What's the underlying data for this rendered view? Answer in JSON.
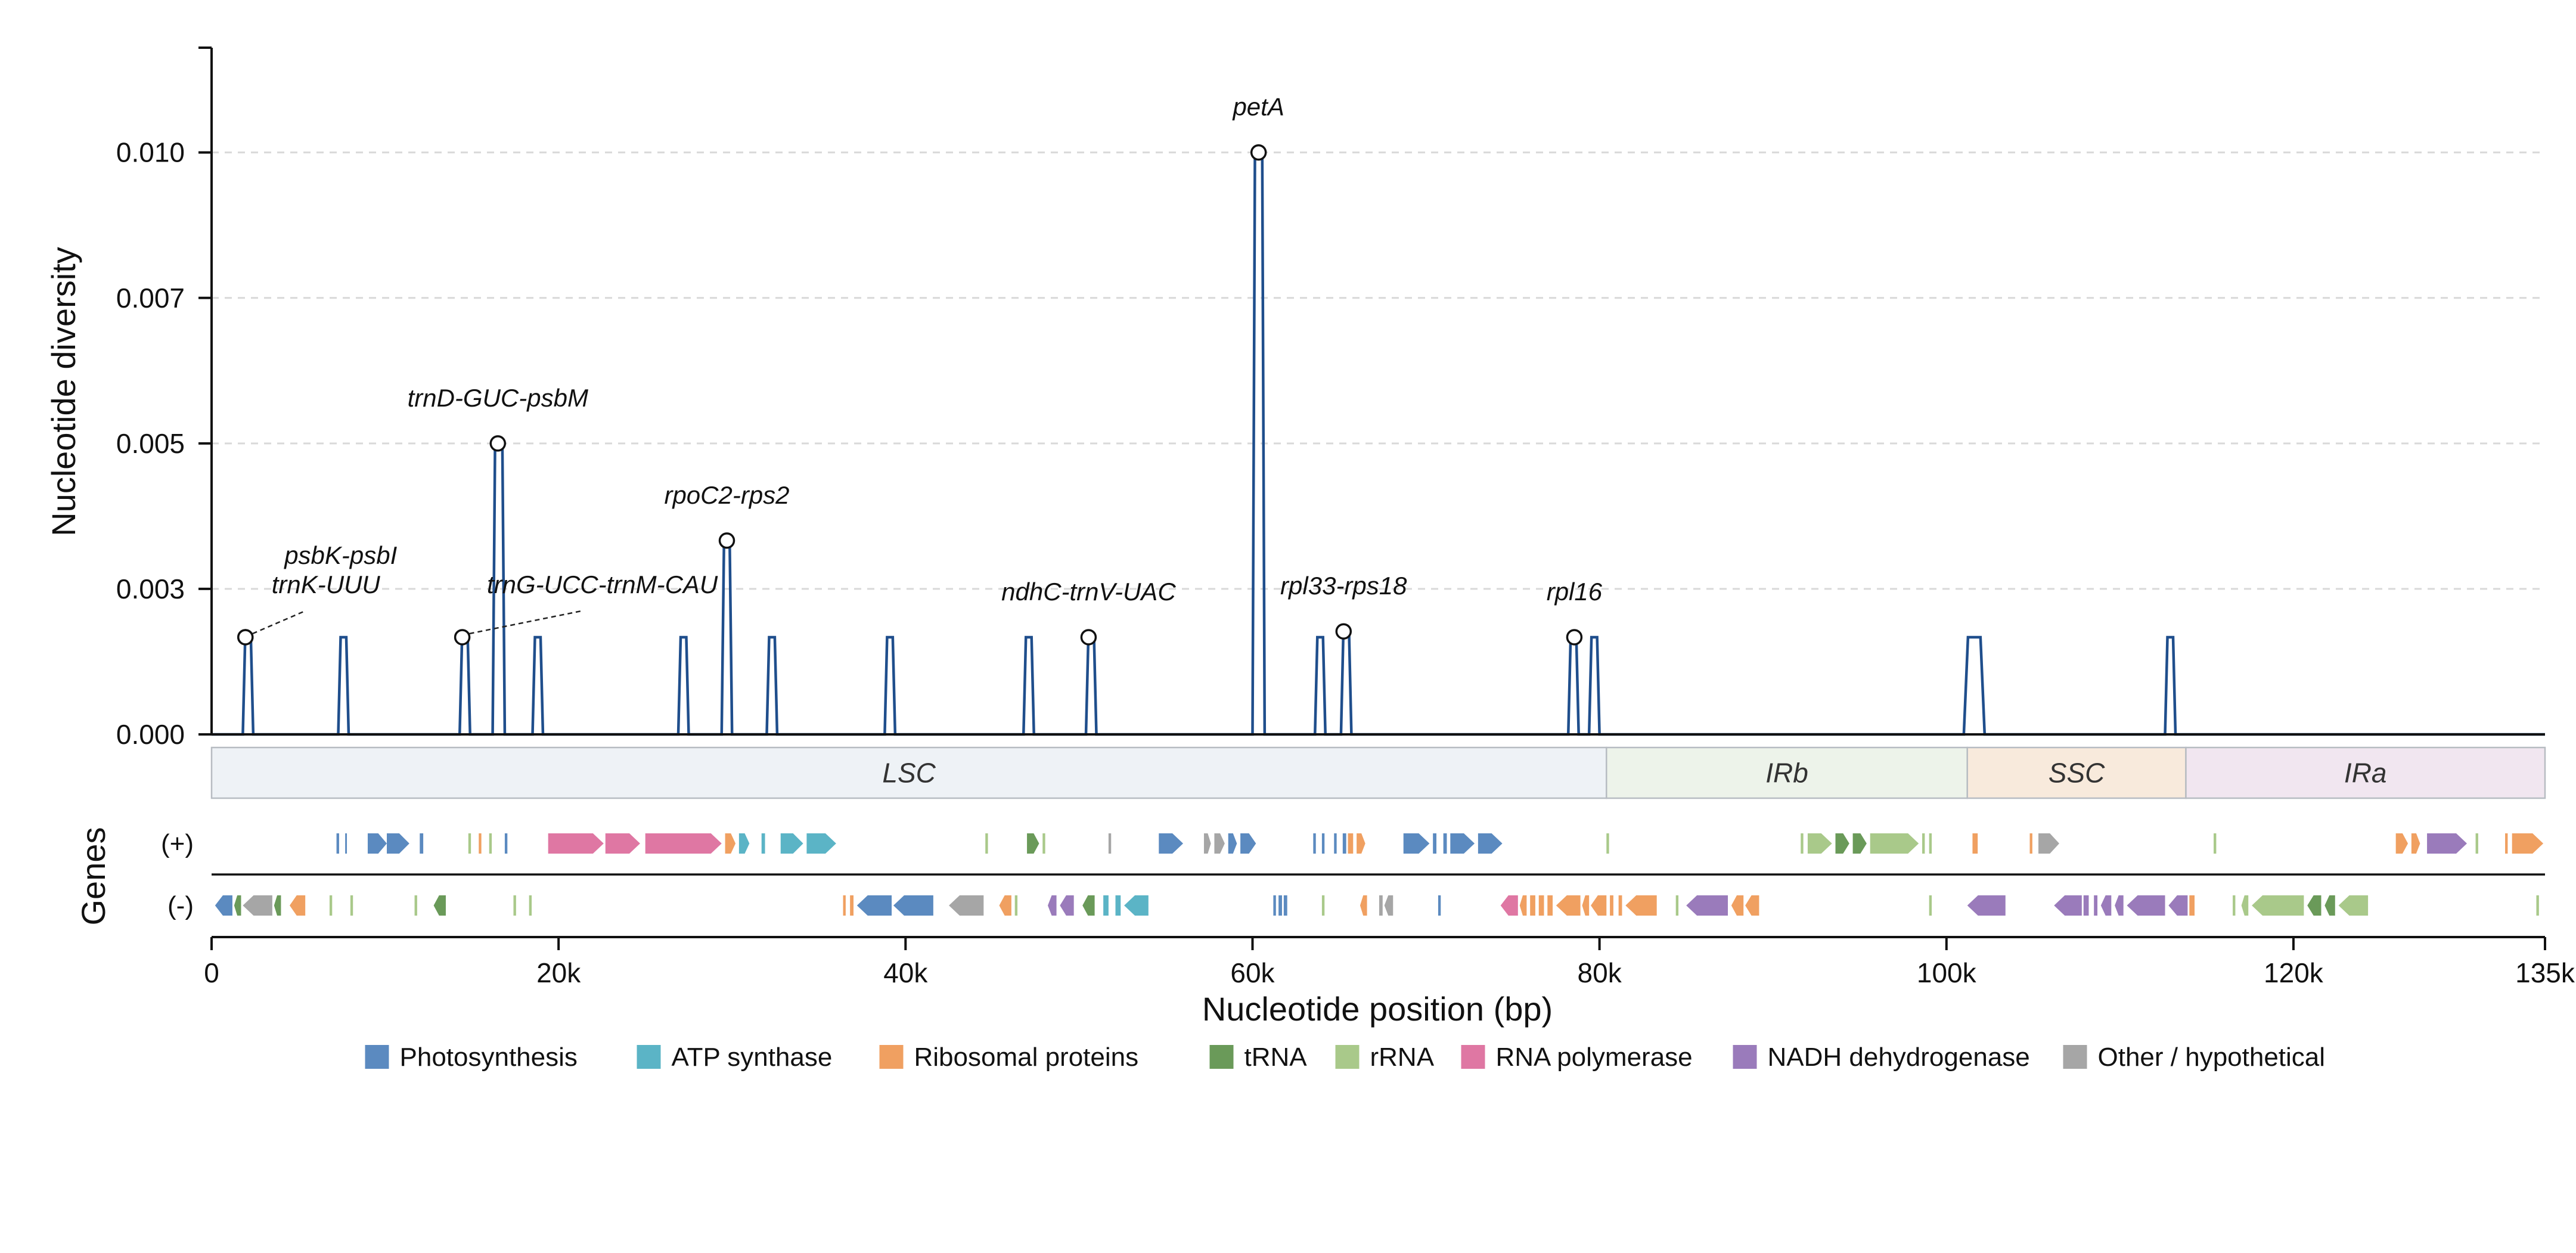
{
  "chart_data": {
    "type": "line",
    "title": "",
    "xlabel": "Nucleotide position (bp)",
    "ylabel": "Nucleotide diversity",
    "xlim": [
      0,
      134500
    ],
    "ylim": [
      0,
      0.0118
    ],
    "y_ticks": [
      0.0,
      0.0025,
      0.005,
      0.0075,
      0.01
    ],
    "y_tick_labels": [
      "0.000",
      "0.003",
      "0.005",
      "0.007",
      "0.010"
    ],
    "x_ticks": [
      0,
      20000,
      40000,
      60000,
      80000,
      100000,
      120000,
      134500
    ],
    "x_tick_labels": [
      "0",
      "20k",
      "40k",
      "60k",
      "80k",
      "100k",
      "120k",
      "135k"
    ],
    "grid": "horizontal dashed",
    "series": [
      {
        "color": "#1f4e8c",
        "peaks": [
          {
            "start": 1800,
            "end": 2400,
            "value": 0.00167
          },
          {
            "start": 7300,
            "end": 7900,
            "value": 0.00167
          },
          {
            "start": 14300,
            "end": 14900,
            "value": 0.00167
          },
          {
            "start": 16200,
            "end": 16900,
            "value": 0.005
          },
          {
            "start": 18500,
            "end": 19100,
            "value": 0.00167
          },
          {
            "start": 26900,
            "end": 27500,
            "value": 0.00167
          },
          {
            "start": 29400,
            "end": 30000,
            "value": 0.00333
          },
          {
            "start": 32000,
            "end": 32600,
            "value": 0.00167
          },
          {
            "start": 38800,
            "end": 39400,
            "value": 0.00167
          },
          {
            "start": 46800,
            "end": 47400,
            "value": 0.00167
          },
          {
            "start": 50400,
            "end": 51000,
            "value": 0.00167
          },
          {
            "start": 60000,
            "end": 60700,
            "value": 0.01
          },
          {
            "start": 63600,
            "end": 64200,
            "value": 0.00167
          },
          {
            "start": 65100,
            "end": 65700,
            "value": 0.00177
          },
          {
            "start": 78200,
            "end": 78800,
            "value": 0.00167
          },
          {
            "start": 79400,
            "end": 80000,
            "value": 0.00167
          },
          {
            "start": 101000,
            "end": 102200,
            "value": 0.00167
          },
          {
            "start": 112600,
            "end": 113200,
            "value": 0.00167
          }
        ]
      }
    ],
    "annotations": [
      {
        "text": "petA",
        "x": 60350,
        "y": 0.01,
        "dx": 0,
        "dy": -62,
        "leader": false
      },
      {
        "text": "trnD-GUC-psbM",
        "x": 16500,
        "y": 0.005,
        "dx": 0,
        "dy": -62,
        "leader": false
      },
      {
        "text": "rpoC2-rps2",
        "x": 29700,
        "y": 0.00333,
        "dx": 0,
        "dy": -62,
        "leader": false
      },
      {
        "text": "psbK-psbI",
        "x": 1950,
        "y": 0.00167,
        "dx": 160,
        "dy": -123,
        "leader": false
      },
      {
        "text": "trnK-UUU",
        "x": 1950,
        "y": 0.00167,
        "dx": 135,
        "dy": -74,
        "leader": true
      },
      {
        "text": "trnG-UCC-trnM-CAU",
        "x": 14450,
        "y": 0.00167,
        "dx": 235,
        "dy": -74,
        "leader": true
      },
      {
        "text": "ndhC-trnV-UAC",
        "x": 50550,
        "y": 0.00167,
        "dx": 0,
        "dy": -62,
        "leader": false
      },
      {
        "text": "rpl33-rps18",
        "x": 65250,
        "y": 0.00177,
        "dx": 0,
        "dy": -62,
        "leader": false
      },
      {
        "text": "rpl16",
        "x": 78550,
        "y": 0.00167,
        "dx": 0,
        "dy": -62,
        "leader": false
      }
    ],
    "regions": [
      {
        "name": "LSC",
        "start": 0,
        "end": 80400,
        "color": "#eef2f6"
      },
      {
        "name": "IRb",
        "start": 80400,
        "end": 101200,
        "color": "#edf3ea"
      },
      {
        "name": "SSC",
        "start": 101200,
        "end": 113800,
        "color": "#f8eadc"
      },
      {
        "name": "IRa",
        "start": 113800,
        "end": 134500,
        "color": "#f1e6f0"
      }
    ],
    "gene_track": {
      "label": "Genes",
      "plus_label": "(+)",
      "minus_label": "(-)",
      "plus": [
        [
          7200,
          7350,
          "photo"
        ],
        [
          7700,
          7800,
          "photo"
        ],
        [
          9000,
          10100,
          "photo"
        ],
        [
          10100,
          11400,
          "photo"
        ],
        [
          12000,
          12200,
          "photo"
        ],
        [
          14800,
          14950,
          "rrna"
        ],
        [
          15400,
          15550,
          "ribo"
        ],
        [
          16000,
          16150,
          "rrna"
        ],
        [
          16900,
          17050,
          "photo"
        ],
        [
          19400,
          22600,
          "rnapol"
        ],
        [
          22700,
          24700,
          "rnapol"
        ],
        [
          25000,
          29400,
          "rnapol"
        ],
        [
          29600,
          30200,
          "ribo"
        ],
        [
          30400,
          31000,
          "atp"
        ],
        [
          31700,
          31900,
          "atp"
        ],
        [
          32800,
          34100,
          "atp"
        ],
        [
          34300,
          36000,
          "atp"
        ],
        [
          44600,
          44750,
          "rrna"
        ],
        [
          47000,
          47700,
          "trna"
        ],
        [
          47900,
          48050,
          "rrna"
        ],
        [
          51700,
          51850,
          "other"
        ],
        [
          54600,
          56000,
          "photo"
        ],
        [
          57200,
          57600,
          "other"
        ],
        [
          57800,
          58400,
          "other"
        ],
        [
          58600,
          59100,
          "photo"
        ],
        [
          59300,
          60200,
          "photo"
        ],
        [
          63500,
          63650,
          "photo"
        ],
        [
          64000,
          64150,
          "photo"
        ],
        [
          64700,
          64850,
          "photo"
        ],
        [
          65200,
          65400,
          "photo"
        ],
        [
          65500,
          65800,
          "ribo"
        ],
        [
          66000,
          66500,
          "ribo"
        ],
        [
          68700,
          70200,
          "photo"
        ],
        [
          70400,
          70600,
          "photo"
        ],
        [
          71000,
          71200,
          "photo"
        ],
        [
          71400,
          72800,
          "photo"
        ],
        [
          73000,
          74400,
          "photo"
        ],
        [
          80400,
          80550,
          "rrna"
        ],
        [
          91600,
          91750,
          "rrna"
        ],
        [
          92000,
          93400,
          "rrna"
        ],
        [
          93600,
          94400,
          "trna"
        ],
        [
          94600,
          95400,
          "trna"
        ],
        [
          95600,
          98400,
          "rrna"
        ],
        [
          98600,
          98750,
          "rrna"
        ],
        [
          99000,
          99150,
          "rrna"
        ],
        [
          101500,
          101800,
          "ribo"
        ],
        [
          104800,
          104950,
          "ribo"
        ],
        [
          105300,
          106500,
          "other"
        ],
        [
          115400,
          115550,
          "rrna"
        ],
        [
          125900,
          126600,
          "ribo"
        ],
        [
          126800,
          127300,
          "ribo"
        ],
        [
          127700,
          130000,
          "nadh"
        ],
        [
          130500,
          130650,
          "rrna"
        ],
        [
          132200,
          132350,
          "ribo"
        ],
        [
          132600,
          134400,
          "ribo"
        ]
      ],
      "minus": [
        [
          200,
          1200,
          "photo"
        ],
        [
          1300,
          1700,
          "trna"
        ],
        [
          1800,
          3500,
          "other"
        ],
        [
          3600,
          4000,
          "trna"
        ],
        [
          4500,
          5400,
          "ribo"
        ],
        [
          6800,
          6950,
          "rrna"
        ],
        [
          8000,
          8150,
          "rrna"
        ],
        [
          11700,
          11850,
          "rrna"
        ],
        [
          12800,
          13500,
          "trna"
        ],
        [
          17400,
          17550,
          "rrna"
        ],
        [
          18300,
          18450,
          "rrna"
        ],
        [
          36400,
          36550,
          "ribo"
        ],
        [
          36800,
          37000,
          "ribo"
        ],
        [
          37200,
          39200,
          "photo"
        ],
        [
          39300,
          41600,
          "photo"
        ],
        [
          42500,
          44500,
          "other"
        ],
        [
          45400,
          46100,
          "ribo"
        ],
        [
          46300,
          46450,
          "rrna"
        ],
        [
          48200,
          48700,
          "nadh"
        ],
        [
          48900,
          49700,
          "nadh"
        ],
        [
          50200,
          50900,
          "trna"
        ],
        [
          51400,
          51700,
          "atp"
        ],
        [
          52100,
          52400,
          "atp"
        ],
        [
          52600,
          54000,
          "atp"
        ],
        [
          61200,
          61350,
          "photo"
        ],
        [
          61500,
          61700,
          "photo"
        ],
        [
          61800,
          62000,
          "photo"
        ],
        [
          64000,
          64150,
          "rrna"
        ],
        [
          66200,
          66600,
          "ribo"
        ],
        [
          67300,
          67500,
          "other"
        ],
        [
          67600,
          68100,
          "other"
        ],
        [
          70700,
          70850,
          "photo"
        ],
        [
          74300,
          75300,
          "rnapol"
        ],
        [
          75400,
          75800,
          "ribo"
        ],
        [
          76000,
          76300,
          "ribo"
        ],
        [
          76500,
          76800,
          "ribo"
        ],
        [
          77000,
          77300,
          "ribo"
        ],
        [
          77500,
          78900,
          "ribo"
        ],
        [
          79000,
          79400,
          "ribo"
        ],
        [
          79500,
          80400,
          "ribo"
        ],
        [
          80600,
          80800,
          "ribo"
        ],
        [
          81100,
          81300,
          "ribo"
        ],
        [
          81500,
          83300,
          "ribo"
        ],
        [
          84400,
          84550,
          "rrna"
        ],
        [
          85000,
          87400,
          "nadh"
        ],
        [
          87600,
          88300,
          "ribo"
        ],
        [
          88400,
          89200,
          "ribo"
        ],
        [
          99000,
          99150,
          "rrna"
        ],
        [
          101200,
          103400,
          "nadh"
        ],
        [
          106200,
          107800,
          "nadh"
        ],
        [
          107900,
          108200,
          "nadh"
        ],
        [
          108500,
          108700,
          "nadh"
        ],
        [
          108900,
          109500,
          "nadh"
        ],
        [
          109700,
          110200,
          "nadh"
        ],
        [
          110400,
          112600,
          "nadh"
        ],
        [
          112800,
          113900,
          "nadh"
        ],
        [
          114000,
          114300,
          "ribo"
        ],
        [
          116500,
          116650,
          "rrna"
        ],
        [
          117000,
          117400,
          "rrna"
        ],
        [
          117600,
          120600,
          "rrna"
        ],
        [
          120800,
          121600,
          "trna"
        ],
        [
          121800,
          122400,
          "trna"
        ],
        [
          122600,
          124300,
          "rrna"
        ],
        [
          134000,
          134150,
          "rrna"
        ]
      ]
    },
    "legend": {
      "placement": "bottom",
      "items": [
        {
          "key": "photo",
          "label": "Photosynthesis",
          "color": "#5b8ac0"
        },
        {
          "key": "atp",
          "label": "ATP synthase",
          "color": "#5bb4c6"
        },
        {
          "key": "ribo",
          "label": "Ribosomal proteins",
          "color": "#f0a061"
        },
        {
          "key": "trna",
          "label": "tRNA",
          "color": "#6a9a59"
        },
        {
          "key": "rrna",
          "label": "rRNA",
          "color": "#a9c98a"
        },
        {
          "key": "rnapol",
          "label": "RNA polymerase",
          "color": "#df77a3"
        },
        {
          "key": "nadh",
          "label": "NADH dehydrogenase",
          "color": "#9a7bbb"
        },
        {
          "key": "other",
          "label": "Other / hypothetical",
          "color": "#a6a6a6"
        }
      ]
    }
  }
}
